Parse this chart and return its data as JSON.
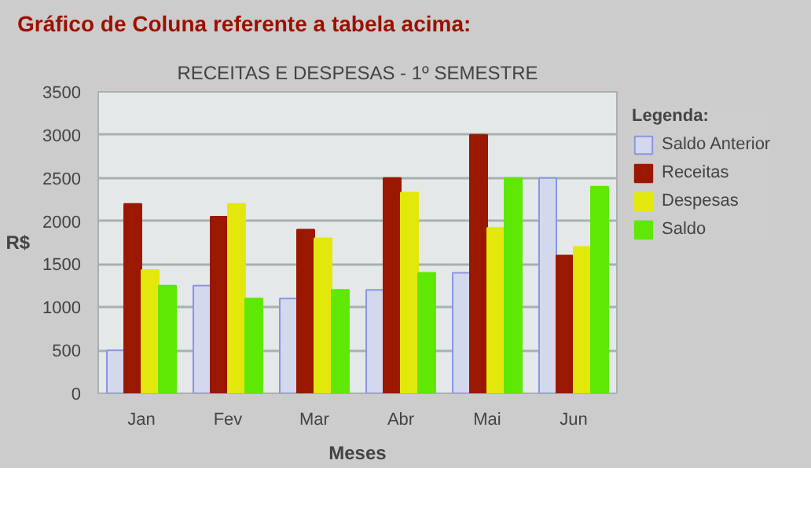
{
  "chart_data": {
    "type": "bar",
    "title": "RECEITAS E DESPESAS - 1º SEMESTRE",
    "annotations": [
      "Gráfico de Coluna referente a tabela acima:"
    ],
    "xlabel": "Meses",
    "ylabel": "R$",
    "legend_title": "Legenda:",
    "categories": [
      "Jan",
      "Fev",
      "Mar",
      "Abr",
      "Mai",
      "Jun"
    ],
    "series": [
      {
        "name": "Saldo Anterior",
        "color": "#d4d8ec",
        "values": [
          500,
          1250,
          1100,
          1200,
          1400,
          2500
        ]
      },
      {
        "name": "Receitas",
        "color": "#9b1800",
        "values": [
          2200,
          2050,
          1900,
          2500,
          3000,
          1600
        ]
      },
      {
        "name": "Despesas",
        "color": "#e3e80c",
        "values": [
          1430,
          2200,
          1800,
          2330,
          1920,
          1700
        ]
      },
      {
        "name": "Saldo",
        "color": "#5ee804",
        "values": [
          1250,
          1100,
          1200,
          1400,
          2500,
          2400
        ]
      }
    ],
    "ylim": [
      0,
      3500
    ],
    "yticks": [
      0,
      500,
      1000,
      1500,
      2000,
      2500,
      3000,
      3500
    ],
    "grid": "y",
    "legend": "right"
  }
}
